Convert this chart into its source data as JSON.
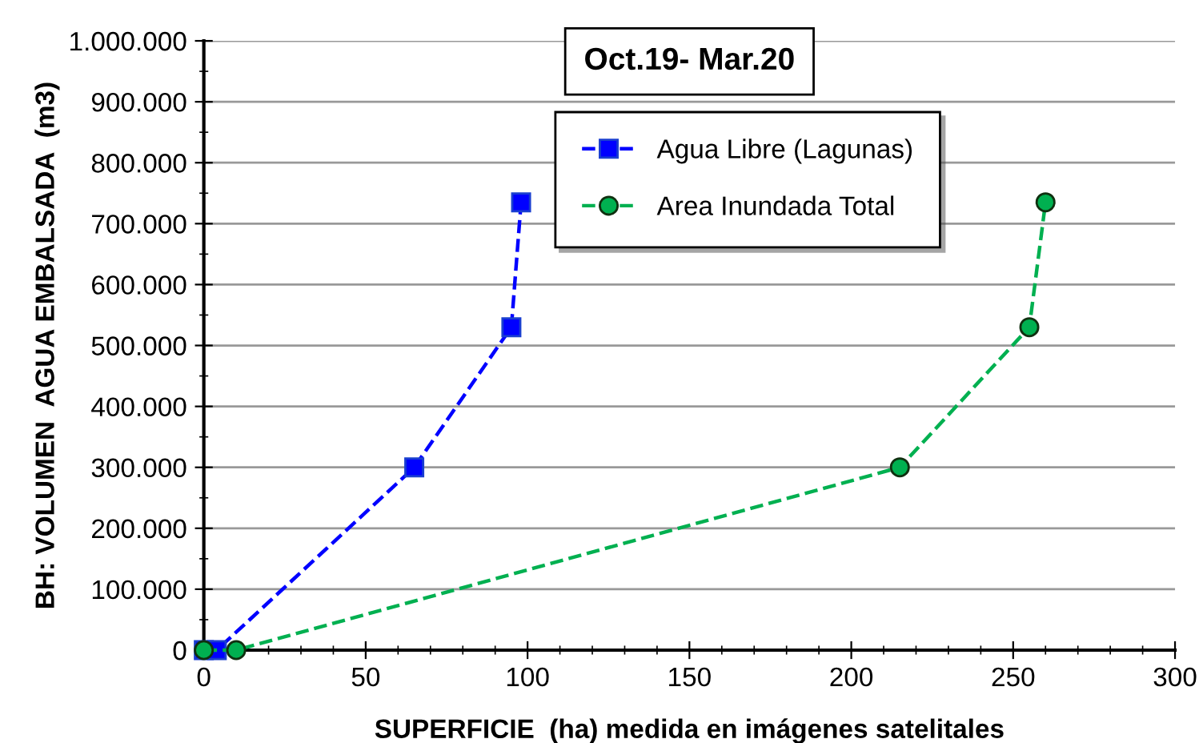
{
  "chart_data": {
    "type": "line",
    "title": "Oct.19- Mar.20",
    "xlabel": "SUPERFICIE  (ha) medida en imágenes satelitales",
    "ylabel": "BH: VOLUMEN  AGUA EMBALSADA  (m3)",
    "series": [
      {
        "name": "Agua Libre (Lagunas)",
        "color": "#0000ff",
        "marker": "square",
        "x": [
          0,
          4,
          65,
          95,
          98
        ],
        "values": [
          0,
          0,
          300000,
          530000,
          735000
        ]
      },
      {
        "name": "Area Inundada Total",
        "color": "#00b050",
        "marker": "circle",
        "x": [
          0,
          10,
          215,
          255,
          260
        ],
        "values": [
          0,
          0,
          300000,
          530000,
          735000
        ]
      }
    ],
    "line_style": "dashed",
    "xlim": [
      0,
      300
    ],
    "xticks": [
      0,
      50,
      100,
      150,
      200,
      250,
      300
    ],
    "ylim": [
      0,
      1000000
    ],
    "yticks": [
      0,
      {
        "value": 100000,
        "label": "100.000"
      },
      {
        "value": 200000,
        "label": "200.000"
      },
      {
        "value": 300000,
        "label": "300.000"
      },
      {
        "value": 400000,
        "label": "400.000"
      },
      {
        "value": 500000,
        "label": "500.000"
      },
      {
        "value": 600000,
        "label": "600.000"
      },
      {
        "value": 700000,
        "label": "700.000"
      },
      {
        "value": 800000,
        "label": "800.000"
      },
      {
        "value": 900000,
        "label": "900.000"
      },
      {
        "value": 1000000,
        "label": "1.000.000"
      }
    ],
    "grid": "y",
    "legend": "top"
  }
}
